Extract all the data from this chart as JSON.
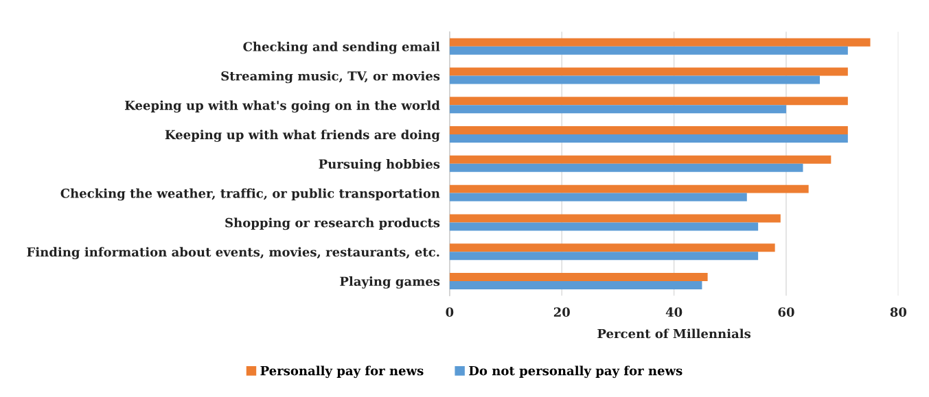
{
  "chart_data": {
    "type": "bar",
    "orientation": "horizontal",
    "xlabel": "Percent of Millennials",
    "categories": [
      "Checking and sending email",
      "Streaming music, TV, or movies",
      "Keeping up with what's going on in the world",
      "Keeping up with what friends are doing",
      "Pursuing hobbies",
      "Checking the weather, traffic, or public transportation",
      "Shopping or research products",
      "Finding information about events, movies, restaurants, etc.",
      "Playing games"
    ],
    "series": [
      {
        "name": "Personally pay for news",
        "color": "#ed7d31",
        "values": [
          75,
          71,
          71,
          71,
          68,
          64,
          59,
          58,
          46
        ]
      },
      {
        "name": "Do not personally pay for news",
        "color": "#5b9bd5",
        "values": [
          71,
          66,
          60,
          71,
          63,
          53,
          55,
          55,
          45
        ]
      }
    ],
    "xlim": [
      0,
      80
    ],
    "xticks": [
      0,
      20,
      40,
      60,
      80
    ],
    "grid": "x",
    "legend": "bottom"
  }
}
